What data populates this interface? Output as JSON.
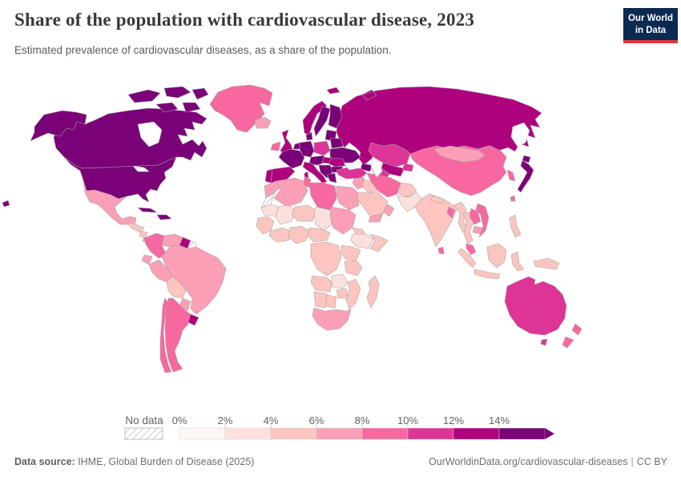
{
  "header": {
    "title": "Share of the population with cardiovascular disease, 2023",
    "subtitle": "Estimated prevalence of cardiovascular diseases, as a share of the population.",
    "logo": {
      "line1": "Our World",
      "line2": "in Data"
    }
  },
  "legend": {
    "no_data_label": "No data"
  },
  "footer": {
    "source_label": "Data source:",
    "source_text": " IHME, Global Burden of Disease (2025)",
    "link": "OurWorldinData.org/cardiovascular-diseases",
    "separator": "|",
    "license": "CC BY"
  },
  "chart_data": {
    "type": "choropleth_map",
    "title": "Share of the population with cardiovascular disease, 2023",
    "value_format": "percent",
    "bin_labels": [
      "0%",
      "2%",
      "4%",
      "6%",
      "8%",
      "10%",
      "12%",
      "14%"
    ],
    "bin_width_percent": 2,
    "open_ended_top_bin": true,
    "colors": [
      "#fff7f3",
      "#fde0dd",
      "#fcc5c0",
      "#fa9fb5",
      "#f768a1",
      "#dd3497",
      "#ae017e",
      "#7a0177"
    ],
    "no_data_color": "hatch",
    "border_color": "#a6a6a6",
    "ocean_color": "#ffffff",
    "countries": [
      {
        "name": "canada",
        "bin": 7
      },
      {
        "name": "canada-arctic-islands",
        "bin": 7
      },
      {
        "name": "alaska",
        "bin": 7
      },
      {
        "name": "united-states",
        "bin": 7
      },
      {
        "name": "hawaii",
        "bin": 7
      },
      {
        "name": "greenland",
        "bin": 4
      },
      {
        "name": "iceland",
        "bin": 3
      },
      {
        "name": "mexico",
        "bin": 3
      },
      {
        "name": "guatemala-honduras",
        "bin": 2
      },
      {
        "name": "nicaragua",
        "bin": 2
      },
      {
        "name": "costa-rica-panama",
        "bin": 3
      },
      {
        "name": "cuba",
        "bin": 7
      },
      {
        "name": "hispaniola",
        "bin": 7
      },
      {
        "name": "colombia",
        "bin": 4
      },
      {
        "name": "venezuela",
        "bin": 3
      },
      {
        "name": "guyana-suriname",
        "bin": 6
      },
      {
        "name": "french-guiana",
        "bin": -1
      },
      {
        "name": "ecuador",
        "bin": 3
      },
      {
        "name": "peru",
        "bin": 3
      },
      {
        "name": "brazil",
        "bin": 3
      },
      {
        "name": "bolivia",
        "bin": 2
      },
      {
        "name": "paraguay",
        "bin": 3
      },
      {
        "name": "chile",
        "bin": 4
      },
      {
        "name": "argentina",
        "bin": 4
      },
      {
        "name": "uruguay",
        "bin": 6
      },
      {
        "name": "russia",
        "bin": 6
      },
      {
        "name": "ireland",
        "bin": 4
      },
      {
        "name": "united-kingdom",
        "bin": 6
      },
      {
        "name": "portugal",
        "bin": 6
      },
      {
        "name": "spain",
        "bin": 6
      },
      {
        "name": "france",
        "bin": 7
      },
      {
        "name": "low-countries",
        "bin": 7
      },
      {
        "name": "germany",
        "bin": 7
      },
      {
        "name": "denmark",
        "bin": 7
      },
      {
        "name": "norway",
        "bin": 6
      },
      {
        "name": "svalbard",
        "bin": 6
      },
      {
        "name": "sweden",
        "bin": 7
      },
      {
        "name": "finland",
        "bin": 7
      },
      {
        "name": "baltics",
        "bin": 7
      },
      {
        "name": "poland",
        "bin": 5
      },
      {
        "name": "belarus",
        "bin": 7
      },
      {
        "name": "ukraine",
        "bin": 7
      },
      {
        "name": "central-europe",
        "bin": 7
      },
      {
        "name": "hungary",
        "bin": 6
      },
      {
        "name": "romania",
        "bin": 6
      },
      {
        "name": "balkans",
        "bin": 7
      },
      {
        "name": "bulgaria",
        "bin": 7
      },
      {
        "name": "greece",
        "bin": 7
      },
      {
        "name": "italy",
        "bin": 6
      },
      {
        "name": "kazakhstan",
        "bin": 5
      },
      {
        "name": "uzbekistan",
        "bin": 6
      },
      {
        "name": "turkmenistan",
        "bin": 5
      },
      {
        "name": "kyrgyzstan-tajikistan",
        "bin": 5
      },
      {
        "name": "caucasus",
        "bin": 7
      },
      {
        "name": "turkey",
        "bin": 5
      },
      {
        "name": "syria-levant",
        "bin": 3
      },
      {
        "name": "iraq",
        "bin": 2
      },
      {
        "name": "saudi-arabia",
        "bin": 2
      },
      {
        "name": "yemen",
        "bin": 3
      },
      {
        "name": "oman",
        "bin": 3
      },
      {
        "name": "iran",
        "bin": 4
      },
      {
        "name": "afghanistan",
        "bin": 2
      },
      {
        "name": "pakistan",
        "bin": 1
      },
      {
        "name": "india",
        "bin": 2
      },
      {
        "name": "nepal",
        "bin": 2
      },
      {
        "name": "bangladesh",
        "bin": 4
      },
      {
        "name": "sri-lanka",
        "bin": 4
      },
      {
        "name": "china",
        "bin": 4
      },
      {
        "name": "mongolia",
        "bin": 3
      },
      {
        "name": "korea",
        "bin": 4
      },
      {
        "name": "japan",
        "bin": 7
      },
      {
        "name": "taiwan",
        "bin": 4
      },
      {
        "name": "myanmar",
        "bin": 2
      },
      {
        "name": "thailand",
        "bin": 2
      },
      {
        "name": "laos",
        "bin": 4
      },
      {
        "name": "cambodia",
        "bin": 3
      },
      {
        "name": "vietnam",
        "bin": 4
      },
      {
        "name": "malaysia",
        "bin": 4
      },
      {
        "name": "indonesia",
        "bin": 2
      },
      {
        "name": "philippines",
        "bin": 2
      },
      {
        "name": "papua-new-guinea",
        "bin": 2
      },
      {
        "name": "australia",
        "bin": 5
      },
      {
        "name": "tasmania",
        "bin": 5
      },
      {
        "name": "new-zealand",
        "bin": 4
      },
      {
        "name": "morocco",
        "bin": 3
      },
      {
        "name": "western-sahara",
        "bin": -1
      },
      {
        "name": "algeria",
        "bin": 3
      },
      {
        "name": "tunisia",
        "bin": 4
      },
      {
        "name": "libya",
        "bin": 4
      },
      {
        "name": "egypt",
        "bin": 3
      },
      {
        "name": "mauritania",
        "bin": 1
      },
      {
        "name": "mali",
        "bin": 1
      },
      {
        "name": "niger",
        "bin": 2
      },
      {
        "name": "chad",
        "bin": 1
      },
      {
        "name": "sudan",
        "bin": 3
      },
      {
        "name": "eritrea-djibouti",
        "bin": 2
      },
      {
        "name": "ethiopia",
        "bin": 1
      },
      {
        "name": "somalia",
        "bin": 2
      },
      {
        "name": "senegal-guinea",
        "bin": 2
      },
      {
        "name": "ivory-coast-ghana",
        "bin": 2
      },
      {
        "name": "nigeria",
        "bin": 2
      },
      {
        "name": "cameroon-car",
        "bin": 2
      },
      {
        "name": "drc",
        "bin": 2
      },
      {
        "name": "uganda-kenya",
        "bin": 2
      },
      {
        "name": "tanzania",
        "bin": 2
      },
      {
        "name": "angola",
        "bin": 2
      },
      {
        "name": "zambia",
        "bin": 1
      },
      {
        "name": "zimbabwe",
        "bin": 2
      },
      {
        "name": "mozambique",
        "bin": 2
      },
      {
        "name": "namibia",
        "bin": 2
      },
      {
        "name": "botswana",
        "bin": 2
      },
      {
        "name": "south-africa",
        "bin": 3
      },
      {
        "name": "madagascar",
        "bin": 2
      }
    ]
  }
}
